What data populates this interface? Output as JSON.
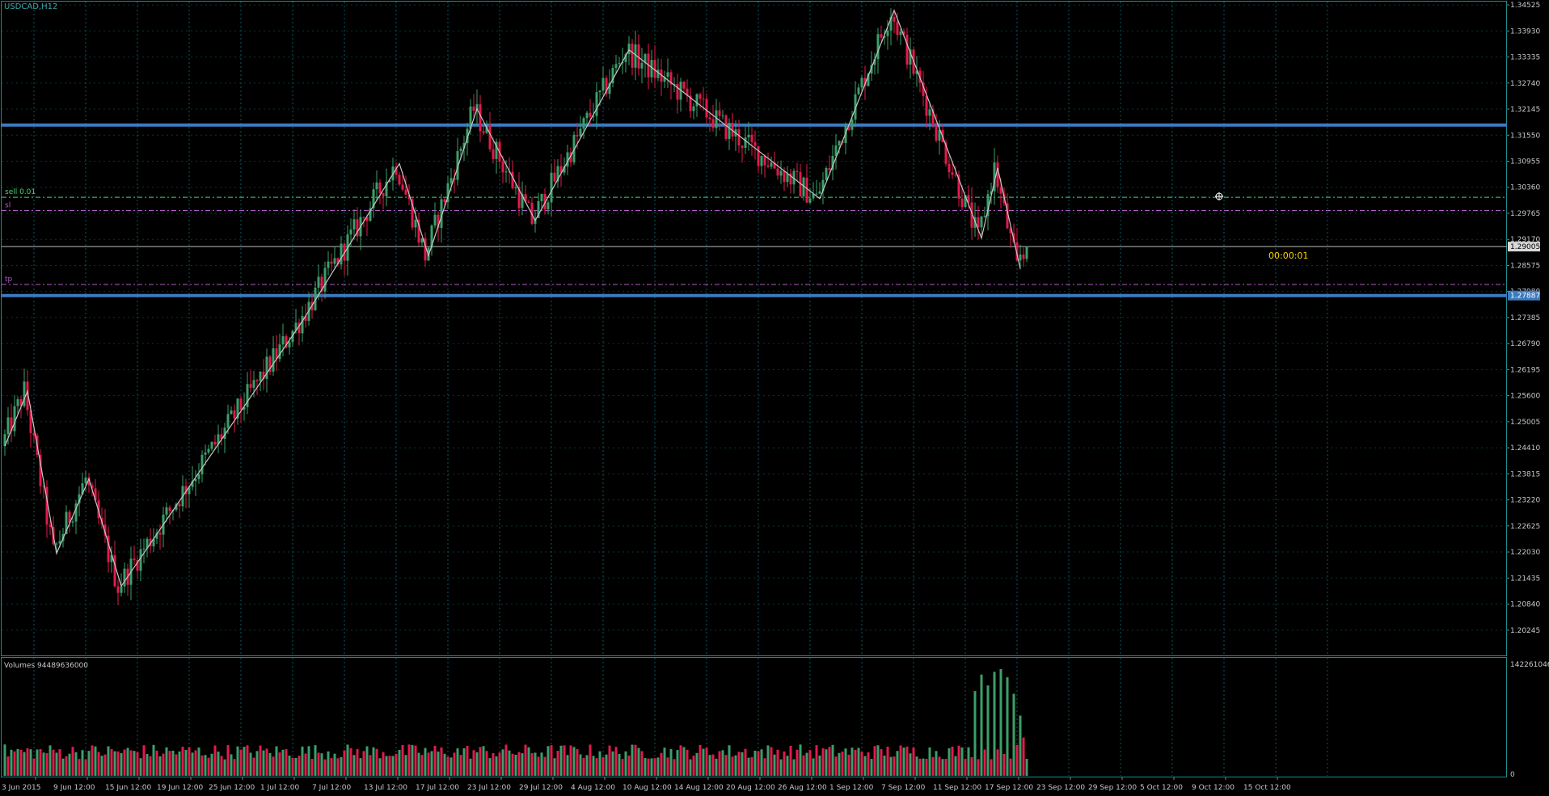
{
  "window": {
    "symbol_label": "USDCAD,H12",
    "volumes_label": "Volumes 94489636000",
    "countdown": "00:00:01"
  },
  "colors": {
    "background": "#000000",
    "grid": "#0b5a61",
    "frame": "#1e8c8c",
    "bull": "#3b9f6a",
    "bear": "#e21a4c",
    "zigzag": "#c6c6c6",
    "level": "#3c7ac0",
    "sell_line": "#43d96f",
    "sl_tp_line": "#b45bc5",
    "text": "#c8c8c8",
    "yellow": "#ffd400"
  },
  "trade_lines": {
    "sell": {
      "label": "sell 0.01",
      "price": 1.3013
    },
    "sl": {
      "label": "sl",
      "price": 1.2983
    },
    "tp": {
      "label": "tp",
      "price": 1.2814
    },
    "bid": {
      "price": 1.29005,
      "label": "1.29005"
    }
  },
  "levels": [
    {
      "price": 1.3178,
      "name": "resistance"
    },
    {
      "price": 1.27887,
      "label": "1.27887",
      "name": "support"
    }
  ],
  "price_axis": {
    "min": 1.1965,
    "max": 1.346,
    "ticks": [
      "1.34525",
      "1.33930",
      "1.33335",
      "1.32740",
      "1.32145",
      "1.31550",
      "1.30955",
      "1.30360",
      "1.29765",
      "1.29170",
      "1.28575",
      "1.27980",
      "1.27385",
      "1.26790",
      "1.26195",
      "1.25600",
      "1.25005",
      "1.24410",
      "1.23815",
      "1.23220",
      "1.22625",
      "1.22030",
      "1.21435",
      "1.20840",
      "1.20245"
    ]
  },
  "volume_axis": {
    "max_label": "142261046",
    "min_label": "0",
    "max": 19500
  },
  "time_axis": {
    "labels": [
      "3 Jun 2015",
      "9 Jun 12:00",
      "15 Jun 12:00",
      "19 Jun 12:00",
      "25 Jun 12:00",
      "1 Jul 12:00",
      "7 Jul 12:00",
      "13 Jul 12:00",
      "17 Jul 12:00",
      "23 Jul 12:00",
      "29 Jul 12:00",
      "4 Aug 12:00",
      "10 Aug 12:00",
      "14 Aug 12:00",
      "20 Aug 12:00",
      "26 Aug 12:00",
      "1 Sep 12:00",
      "7 Sep 12:00",
      "11 Sep 12:00",
      "17 Sep 12:00",
      "23 Sep 12:00",
      "29 Sep 12:00",
      "5 Oct 12:00",
      "9 Oct 12:00",
      "15 Oct 12:00"
    ]
  },
  "zigzag": [
    [
      0,
      1.2445
    ],
    [
      7,
      1.257
    ],
    [
      16,
      1.22
    ],
    [
      26,
      1.237
    ],
    [
      36,
      1.2125
    ],
    [
      92,
      1.273
    ],
    [
      122,
      1.309
    ],
    [
      131,
      1.288
    ],
    [
      146,
      1.3215
    ],
    [
      164,
      1.296
    ],
    [
      193,
      1.335
    ],
    [
      252,
      1.301
    ],
    [
      275,
      1.344
    ],
    [
      302,
      1.292
    ],
    [
      307,
      1.308
    ],
    [
      314,
      1.285
    ]
  ],
  "candle_count": 317,
  "volume_spikes": [
    {
      "index": 300,
      "value": 15500
    },
    {
      "index": 302,
      "value": 18500
    },
    {
      "index": 304,
      "value": 16500
    },
    {
      "index": 306,
      "value": 19000
    },
    {
      "index": 308,
      "value": 19500
    },
    {
      "index": 310,
      "value": 18000
    },
    {
      "index": 312,
      "value": 15000
    },
    {
      "index": 314,
      "value": 11000
    },
    {
      "index": 315,
      "value": 7000
    }
  ]
}
